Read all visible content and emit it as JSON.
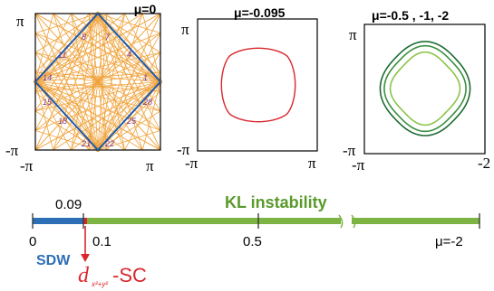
{
  "panels": [
    {
      "mu_label": "μ=0",
      "y_top": "π",
      "y_bottom": "-π",
      "x_left": "-π",
      "x_right": "π",
      "patch_numbers": [
        "1",
        "4",
        "7",
        "8",
        "11",
        "14",
        "15",
        "18",
        "21",
        "22",
        "25",
        "28"
      ]
    },
    {
      "mu_label": "μ=-0.095",
      "y_top": "π",
      "y_bottom": "-π",
      "x_left": "-π",
      "x_right": "π"
    },
    {
      "mu_label": "μ=-0.5 , -1, -2",
      "y_top": "π",
      "y_bottom": "-π",
      "x_left": "-π",
      "x_right": "-2"
    }
  ],
  "phase_bar": {
    "instability_label": "KL instability",
    "tick_above": "0.09",
    "tick_labels": [
      "0",
      "0.1",
      "0.5",
      "μ=-2"
    ],
    "sdw_label": "SDW",
    "sc_label": "-SC",
    "sc_symbol": "d",
    "sc_subscript": "x²+y²"
  },
  "colors": {
    "orange": "#f0a33c",
    "blue": "#1f5aa6",
    "red": "#d9262d",
    "sdw_blue": "#2d6fb7",
    "green": "#7cb342",
    "green_label": "#5a9a2b",
    "purple": "#7a3a8c",
    "dark_green": "#1e6b33",
    "mid_green": "#3a8f3f",
    "light_green": "#8bc34a"
  }
}
